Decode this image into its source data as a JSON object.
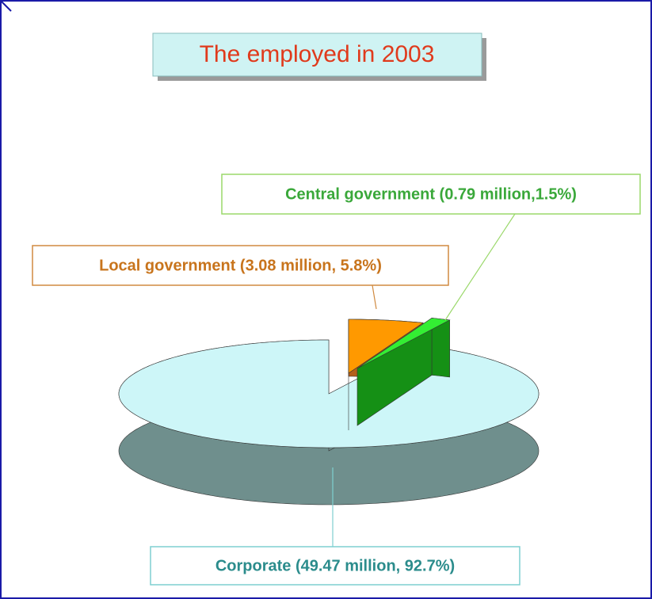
{
  "chart_data": {
    "type": "pie",
    "title": "The employed in 2003",
    "values": [
      3.08,
      0.79,
      49.47
    ],
    "value_labels": [
      "Local government (3.08 million, 5.8%)",
      "Central government (0.79 million,1.5%)",
      "Corporate (49.47 million, 92.7%)"
    ],
    "colors": [
      "#ff9900",
      "#33ee33",
      "#cdf6f8"
    ],
    "side_colors": [
      "#b4601c",
      "#159015",
      "#6f8f8d"
    ]
  }
}
